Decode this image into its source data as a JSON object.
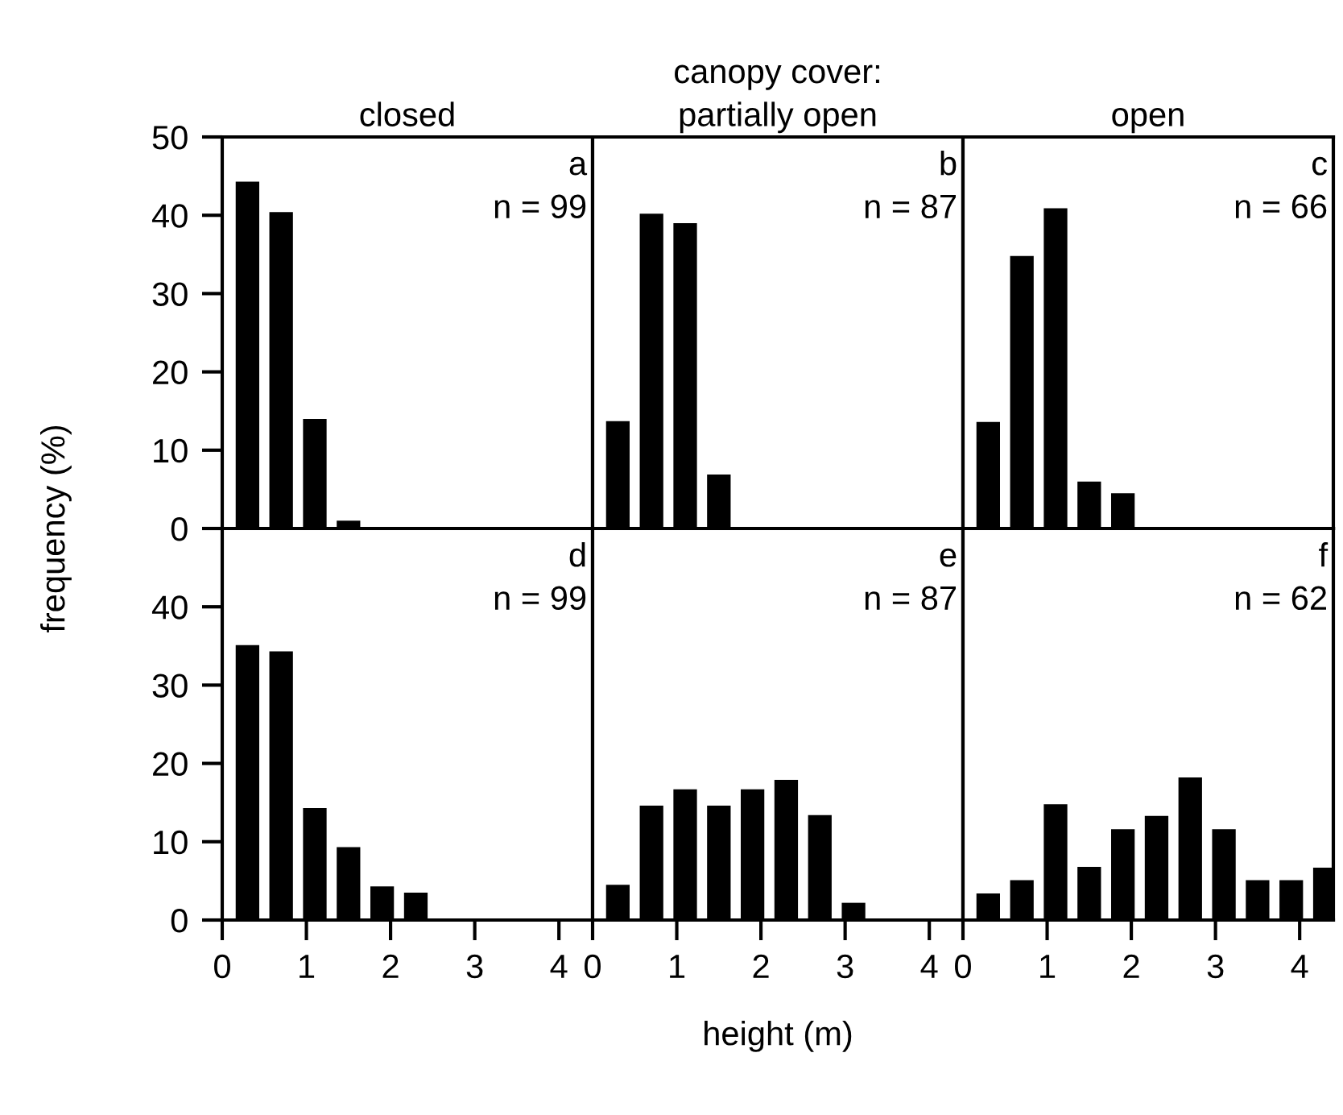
{
  "chart_data": [
    {
      "type": "histogram",
      "title": "closed",
      "ylabel": "frequency (%)",
      "annotations": [
        "a",
        "n = 99"
      ],
      "bins": [
        0.1,
        0.5,
        0.9,
        1.3,
        1.7
      ],
      "values": [
        44.3,
        40.4,
        14.0,
        1.0
      ],
      "color": "#000000",
      "xlim": [
        0,
        4.4
      ],
      "ylim": [
        0,
        50
      ],
      "yticks": [
        0,
        10,
        20,
        30,
        40,
        50
      ],
      "tick_labels": "y"
    },
    {
      "type": "histogram",
      "title": "canopy cover:",
      "subtitle": "partially open",
      "annotations": [
        "b",
        "n = 87"
      ],
      "bins": [
        0.1,
        0.5,
        0.9,
        1.3,
        1.7
      ],
      "values": [
        13.7,
        40.2,
        39.0,
        6.9
      ],
      "color": "#000000",
      "xlim": [
        0,
        4.4
      ],
      "ylim": [
        0,
        50
      ],
      "tick_labels": false
    },
    {
      "type": "histogram",
      "title": "open",
      "annotations": [
        "c",
        "n = 66"
      ],
      "bins": [
        0.1,
        0.5,
        0.9,
        1.3,
        1.7,
        2.1
      ],
      "values": [
        13.6,
        34.8,
        40.9,
        6.0,
        4.5
      ],
      "color": "#000000",
      "xlim": [
        0,
        4.4
      ],
      "ylim": [
        0,
        50
      ],
      "tick_labels": false
    },
    {
      "type": "histogram",
      "annotations": [
        "d",
        "n = 99"
      ],
      "bins": [
        0.1,
        0.5,
        0.9,
        1.3,
        1.7,
        2.1,
        2.5
      ],
      "values": [
        35.1,
        34.3,
        14.3,
        9.3,
        4.3,
        3.5
      ],
      "color": "#000000",
      "xlim": [
        0,
        4.4
      ],
      "xticks": [
        0,
        1,
        2,
        3,
        4
      ],
      "ylim": [
        0,
        50
      ],
      "yticks": [
        0,
        10,
        20,
        30,
        40
      ]
    },
    {
      "type": "histogram",
      "xlabel": "height (m)",
      "annotations": [
        "e",
        "n = 87"
      ],
      "bins": [
        0.1,
        0.5,
        0.9,
        1.3,
        1.7,
        2.1,
        2.5,
        2.9,
        3.3
      ],
      "values": [
        4.5,
        14.6,
        16.7,
        14.6,
        16.7,
        17.9,
        13.4,
        2.2
      ],
      "color": "#000000",
      "xlim": [
        0,
        4.4
      ],
      "xticks": [
        0,
        1,
        2,
        3,
        4
      ],
      "ylim": [
        0,
        50
      ],
      "tick_labels": "x"
    },
    {
      "type": "histogram",
      "annotations": [
        "f",
        "n = 62"
      ],
      "bins": [
        0.1,
        0.5,
        0.9,
        1.3,
        1.7,
        2.1,
        2.5,
        2.9,
        3.3,
        3.7,
        4.1,
        4.5
      ],
      "values": [
        3.4,
        5.1,
        14.8,
        6.8,
        11.6,
        13.3,
        18.2,
        11.6,
        5.1,
        5.1,
        6.7
      ],
      "color": "#000000",
      "xlim": [
        0,
        4.4
      ],
      "xticks": [
        0,
        1,
        2,
        3,
        4
      ],
      "ylim": [
        0,
        50
      ],
      "tick_labels": "x"
    }
  ]
}
